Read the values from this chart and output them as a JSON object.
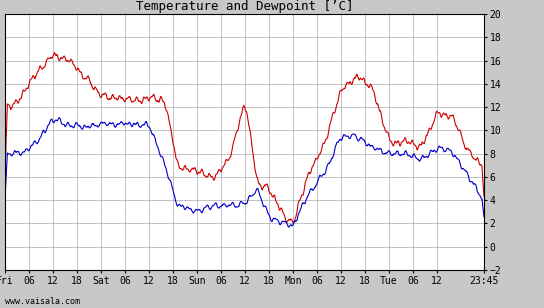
{
  "title": "Temperature and Dewpoint [’C]",
  "watermark": "www.vaisala.com",
  "ylim": [
    -2,
    20
  ],
  "yticks": [
    -2,
    0,
    2,
    4,
    6,
    8,
    10,
    12,
    14,
    16,
    18,
    20
  ],
  "bg_color": "#c8c8c8",
  "plot_bg_color": "#ffffff",
  "grid_color": "#aaaaaa",
  "temp_color": "#cc0000",
  "dew_color": "#0000cc",
  "line_width": 0.8,
  "x_tick_labels": [
    "Fri",
    "06",
    "12",
    "18",
    "Sat",
    "06",
    "12",
    "18",
    "Sun",
    "06",
    "12",
    "18",
    "Mon",
    "06",
    "12",
    "18",
    "Tue",
    "06",
    "12",
    "23:45"
  ],
  "x_tick_positions": [
    0,
    6,
    12,
    18,
    24,
    30,
    36,
    42,
    48,
    54,
    60,
    66,
    72,
    78,
    84,
    90,
    96,
    102,
    108,
    119.75
  ],
  "total_hours": 119.75,
  "font_family": "monospace",
  "title_fontsize": 9,
  "tick_fontsize": 7,
  "watermark_fontsize": 6
}
